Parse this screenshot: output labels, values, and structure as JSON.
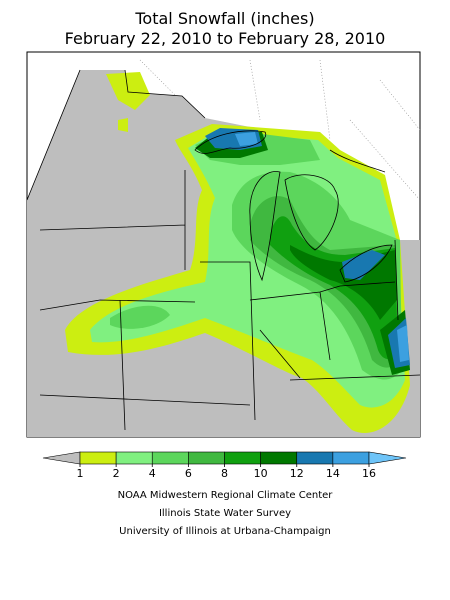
{
  "header": {
    "title": "Total Snowfall (inches)",
    "subtitle": "February 22, 2010 to February 28, 2010"
  },
  "legend": {
    "ticks": [
      1,
      2,
      4,
      6,
      8,
      10,
      12,
      14,
      16
    ],
    "colors": [
      "#bebebe",
      "#ccee11",
      "#80f080",
      "#5cd65c",
      "#40b840",
      "#10a010",
      "#007800",
      "#1878b0",
      "#3ca0e0",
      "#6ec4f8"
    ]
  },
  "footer": {
    "lines": [
      "NOAA Midwestern Regional Climate Center",
      "Illinois State Water Survey",
      "University of Illinois at Urbana-Champaign"
    ]
  }
}
